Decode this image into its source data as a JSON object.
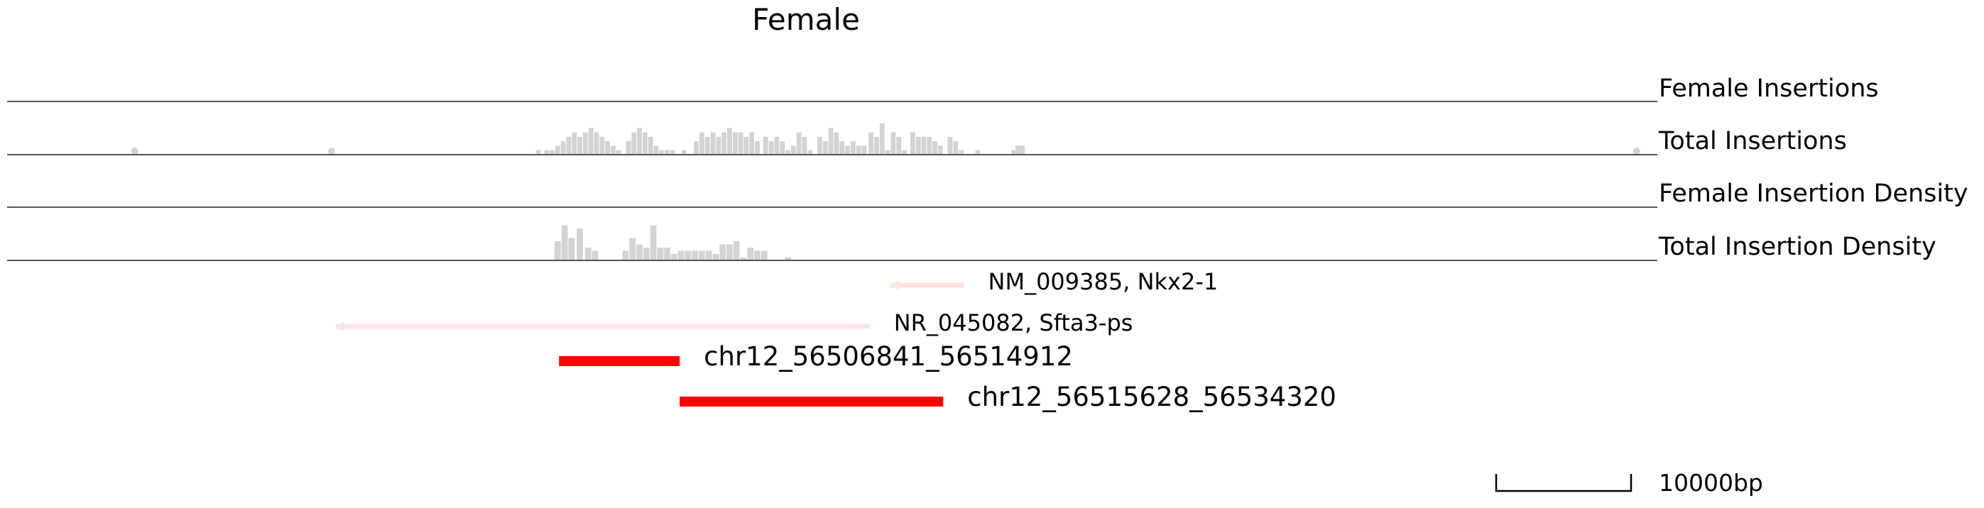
{
  "chart_data": {
    "type": "bar",
    "title": "Female",
    "genomic_range_bp": [
      56481000,
      56600000
    ],
    "colors": {
      "histogram": "#d3d3d3",
      "baseline": "#555555",
      "gene": "#ffe4e1",
      "region": "#ff0000"
    },
    "tracks": [
      {
        "label": "Female Insertions",
        "values": []
      },
      {
        "label": "Total Insertions",
        "values": [
          [
            56490200,
            1
          ],
          [
            56504400,
            1
          ],
          [
            56519300,
            1
          ],
          [
            56519900,
            1
          ],
          [
            56520300,
            1
          ],
          [
            56520700,
            2
          ],
          [
            56521100,
            3
          ],
          [
            56521500,
            4
          ],
          [
            56521900,
            5
          ],
          [
            56522300,
            4
          ],
          [
            56522700,
            5
          ],
          [
            56523100,
            6
          ],
          [
            56523500,
            5
          ],
          [
            56523900,
            4
          ],
          [
            56524300,
            3
          ],
          [
            56524700,
            2
          ],
          [
            56525100,
            1
          ],
          [
            56525800,
            3
          ],
          [
            56526200,
            5
          ],
          [
            56526600,
            6
          ],
          [
            56527000,
            5
          ],
          [
            56527400,
            4
          ],
          [
            56527800,
            2
          ],
          [
            56528200,
            1
          ],
          [
            56528600,
            1
          ],
          [
            56529000,
            1
          ],
          [
            56529800,
            1
          ],
          [
            56530700,
            3
          ],
          [
            56531100,
            5
          ],
          [
            56531500,
            4
          ],
          [
            56531900,
            5
          ],
          [
            56532300,
            4
          ],
          [
            56532700,
            5
          ],
          [
            56533100,
            6
          ],
          [
            56533500,
            5
          ],
          [
            56533900,
            5
          ],
          [
            56534300,
            4
          ],
          [
            56534700,
            5
          ],
          [
            56535100,
            3
          ],
          [
            56535700,
            4
          ],
          [
            56536100,
            3
          ],
          [
            56536500,
            4
          ],
          [
            56536900,
            3
          ],
          [
            56537300,
            1
          ],
          [
            56537700,
            2
          ],
          [
            56538100,
            5
          ],
          [
            56538500,
            4
          ],
          [
            56538900,
            1
          ],
          [
            56539600,
            4
          ],
          [
            56540000,
            3
          ],
          [
            56540400,
            6
          ],
          [
            56540800,
            5
          ],
          [
            56541200,
            3
          ],
          [
            56541600,
            2
          ],
          [
            56542000,
            3
          ],
          [
            56542400,
            2
          ],
          [
            56542800,
            2
          ],
          [
            56543300,
            5
          ],
          [
            56543700,
            4
          ],
          [
            56544100,
            7
          ],
          [
            56544500,
            1
          ],
          [
            56544900,
            5
          ],
          [
            56545300,
            4
          ],
          [
            56545700,
            1
          ],
          [
            56546300,
            5
          ],
          [
            56546700,
            4
          ],
          [
            56547100,
            4
          ],
          [
            56547500,
            4
          ],
          [
            56547900,
            3
          ],
          [
            56548300,
            2
          ],
          [
            56549000,
            4
          ],
          [
            56549400,
            3
          ],
          [
            56549800,
            1
          ],
          [
            56551000,
            1
          ],
          [
            56553600,
            1
          ],
          [
            56553900,
            2
          ],
          [
            56554200,
            2
          ],
          [
            56598500,
            1
          ]
        ]
      },
      {
        "label": "Female Insertion Density",
        "values": []
      },
      {
        "label": "Total Insertion Density",
        "values": [
          [
            56520700,
            6
          ],
          [
            56521200,
            11
          ],
          [
            56521700,
            7
          ],
          [
            56522300,
            10
          ],
          [
            56522900,
            4
          ],
          [
            56523400,
            3
          ],
          [
            56525600,
            3
          ],
          [
            56526100,
            7
          ],
          [
            56526600,
            5
          ],
          [
            56527100,
            4
          ],
          [
            56527600,
            11
          ],
          [
            56528100,
            4
          ],
          [
            56528600,
            4
          ],
          [
            56529100,
            2
          ],
          [
            56529600,
            3
          ],
          [
            56530100,
            3
          ],
          [
            56530600,
            3
          ],
          [
            56531100,
            3
          ],
          [
            56531600,
            3
          ],
          [
            56532100,
            2
          ],
          [
            56532600,
            5
          ],
          [
            56533100,
            5
          ],
          [
            56533600,
            6
          ],
          [
            56534100,
            1
          ],
          [
            56534600,
            4
          ],
          [
            56535100,
            3
          ],
          [
            56535600,
            3
          ],
          [
            56537300,
            1
          ]
        ]
      }
    ],
    "features": [
      {
        "label": "NM_009385, Nkx2-1",
        "start": 56544700,
        "end": 56550000,
        "strand": "-",
        "kind": "gene"
      },
      {
        "label": "NR_045082, Sfta3-ps",
        "start": 56504700,
        "end": 56543200,
        "strand": "-",
        "kind": "gene"
      },
      {
        "label": "chr12_56506841_56514912",
        "start": 56520800,
        "end": 56529500,
        "strand": "",
        "kind": "region"
      },
      {
        "label": "chr12_56515628_56534320",
        "start": 56529500,
        "end": 56548500,
        "strand": "",
        "kind": "region"
      }
    ],
    "scale_bar": {
      "label": "10000bp",
      "length_bp": 10000
    }
  }
}
